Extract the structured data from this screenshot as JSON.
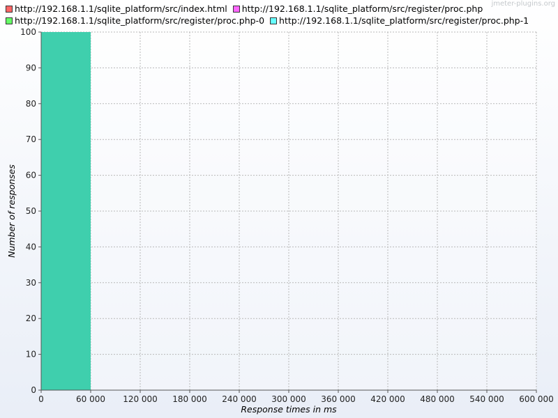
{
  "watermark": "jmeter-plugins.org",
  "chart_data": {
    "type": "bar",
    "title": "",
    "xlabel": "Response times in ms",
    "ylabel": "Number of responses",
    "xlim": [
      0,
      600000
    ],
    "ylim": [
      0,
      100
    ],
    "x_ticks": [
      0,
      60000,
      120000,
      180000,
      240000,
      300000,
      360000,
      420000,
      480000,
      540000,
      600000
    ],
    "x_tick_labels": [
      "0",
      "60 000",
      "120 000",
      "180 000",
      "240 000",
      "300 000",
      "360 000",
      "420 000",
      "480 000",
      "540 000",
      "600 000"
    ],
    "y_ticks": [
      0,
      10,
      20,
      30,
      40,
      50,
      60,
      70,
      80,
      90,
      100
    ],
    "y_tick_labels": [
      "0",
      "10",
      "20",
      "30",
      "40",
      "50",
      "60",
      "70",
      "80",
      "90",
      "100"
    ],
    "grid": true,
    "legend_position": "top",
    "series": [
      {
        "name": "http://192.168.1.1/sqlite_platform/src/index.html",
        "color": "#ff6666",
        "bins": []
      },
      {
        "name": "http://192.168.1.1/sqlite_platform/src/register/proc.php",
        "color": "#ff66ff",
        "bins": []
      },
      {
        "name": "http://192.168.1.1/sqlite_platform/src/register/proc.php-0",
        "color": "#66ff66",
        "bins": []
      },
      {
        "name": "http://192.168.1.1/sqlite_platform/src/register/proc.php-1",
        "color": "#66ffff",
        "bins": []
      }
    ],
    "bars": [
      {
        "x_start": 0,
        "x_end": 60000,
        "value": 100,
        "color": "#3fcfad"
      }
    ]
  }
}
